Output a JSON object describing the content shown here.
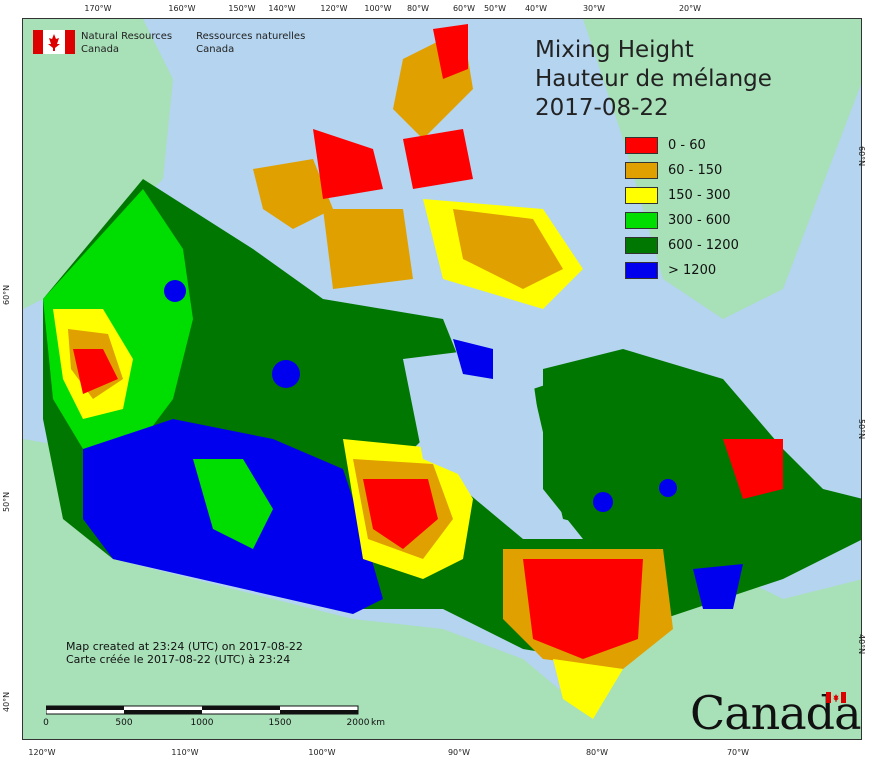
{
  "map": {
    "title": {
      "line1": "Mixing Height",
      "line2": "Hauteur de mélange",
      "date": "2017-08-22"
    },
    "legend": [
      {
        "label": "0 - 60",
        "color": "#ff0000"
      },
      {
        "label": "60 - 150",
        "color": "#e0a000"
      },
      {
        "label": "150 - 300",
        "color": "#ffff00"
      },
      {
        "label": "300 - 600",
        "color": "#00dd00"
      },
      {
        "label": "600 - 1200",
        "color": "#007700"
      },
      {
        "label": "> 1200",
        "color": "#0000ee"
      }
    ],
    "agency": {
      "en_line1": "Natural Resources",
      "en_line2": "Canada",
      "fr_line1": "Ressources naturelles",
      "fr_line2": "Canada"
    },
    "credit": {
      "line1": "Map created at 23:24 (UTC) on 2017-08-22",
      "line2": "Carte créée le 2017-08-22 (UTC) à 23:24"
    },
    "scale": {
      "labels": [
        "0",
        "500",
        "1000",
        "1500",
        "2000"
      ],
      "unit": "km"
    },
    "wordmark": "Canada",
    "longitude_ticks_top": [
      "170°W",
      "160°W",
      "150°W",
      "140°W",
      "120°W",
      "100°W",
      "80°W",
      "60°W",
      "50°W",
      "40°W",
      "30°W",
      "20°W"
    ],
    "longitude_ticks_bottom": [
      "120°W",
      "110°W",
      "100°W",
      "90°W",
      "80°W",
      "70°W"
    ],
    "latitude_ticks_left": [
      "60°N",
      "50°N",
      "40°N"
    ],
    "latitude_ticks_right": [
      "60°N",
      "50°N",
      "40°N"
    ],
    "colors": {
      "ocean": "#b4d4ef",
      "land": "#a8e0b8"
    }
  }
}
